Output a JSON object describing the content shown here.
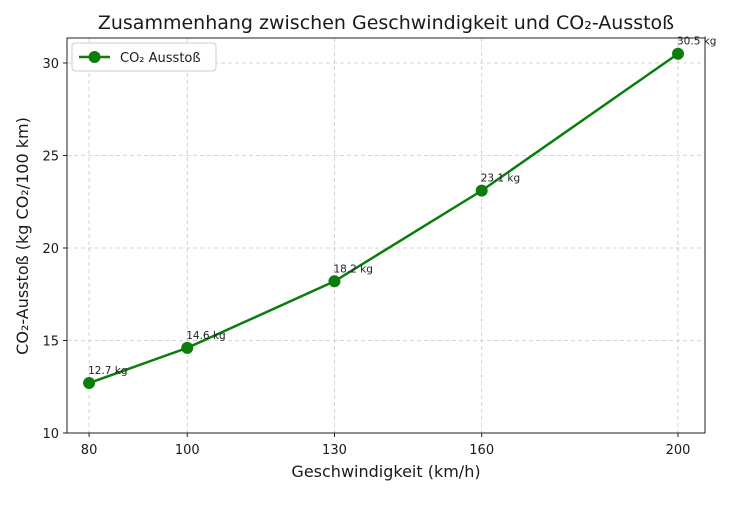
{
  "chart_data": {
    "type": "line",
    "title": "Zusammenhang zwischen Geschwindigkeit und CO₂-Ausstoß",
    "xlabel": "Geschwindigkeit (km/h)",
    "ylabel": "CO₂-Ausstoß (kg CO₂/100 km)",
    "x": [
      80,
      100,
      130,
      160,
      200
    ],
    "series": [
      {
        "name": "CO₂ Ausstoß",
        "values": [
          12.7,
          14.6,
          18.2,
          23.1,
          30.5
        ],
        "color": "#0a7d0a",
        "marker": "circle"
      }
    ],
    "annotations": [
      "12.7 kg",
      "14.6 kg",
      "18.2 kg",
      "23.1 kg",
      "30.5 kg"
    ],
    "xticks": [
      80,
      100,
      130,
      160,
      200
    ],
    "yticks": [
      10,
      15,
      20,
      25,
      30
    ],
    "xlim": [
      75.5,
      205.5
    ],
    "ylim": [
      10,
      31.35
    ],
    "grid": true,
    "legend_position": "upper left"
  }
}
